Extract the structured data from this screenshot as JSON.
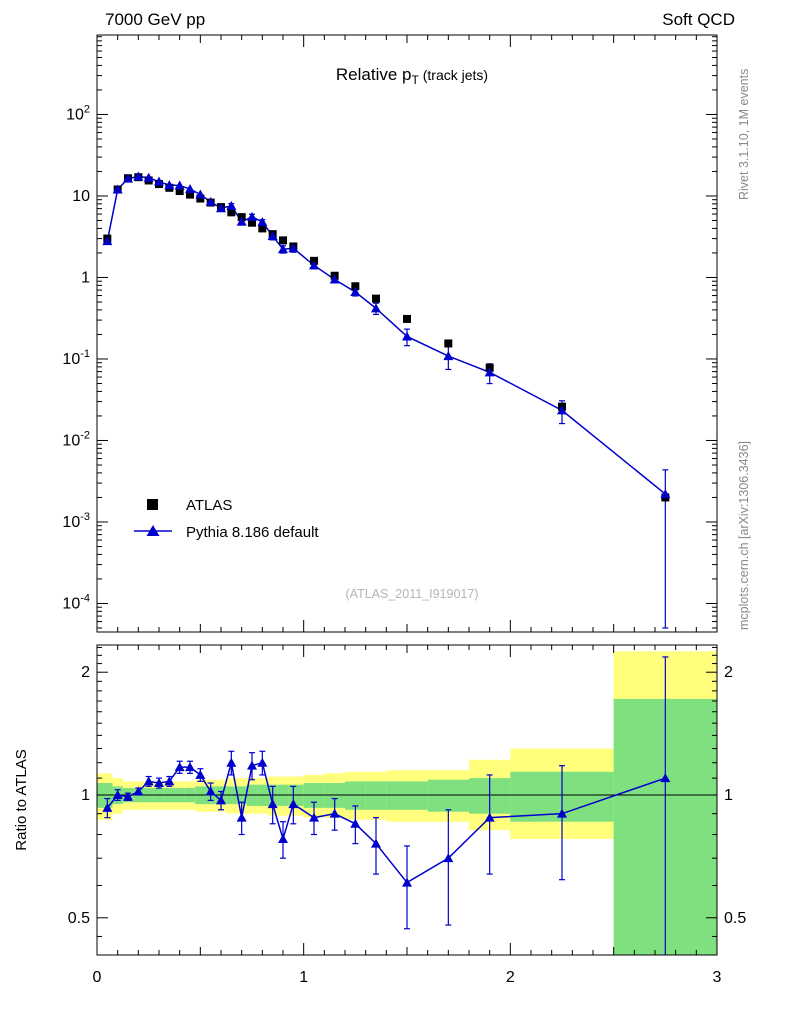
{
  "header": {
    "left": "7000 GeV pp",
    "right": "Soft QCD"
  },
  "side_labels": {
    "top_right": "Rivet 3.1.10, 1M events",
    "bottom_right": "mcplots.cern.ch [arXiv:1306.3436]"
  },
  "watermark": "(ATLAS_2011_I919017)",
  "colors": {
    "pythia_blue": "#0000cd",
    "atlas_black": "#000000",
    "band_yellow": "#ffff7d",
    "band_green": "#7fe07f",
    "gray_text": "#8a8a8a",
    "watermark_gray": "#b5b5b5"
  },
  "chart_data": [
    {
      "type": "line",
      "panel": "main",
      "title_main": "Relative p",
      "title_sub": "T",
      "title_suffix": " (track jets)",
      "xlabel": "",
      "ylabel": "",
      "xlim": [
        0,
        3
      ],
      "yscale": "log",
      "ylim": [
        4.5e-05,
        950
      ],
      "y_tick_labels": [
        "10^2",
        "10",
        "1",
        "10^-1",
        "10^-2",
        "10^-3",
        "10^-4"
      ],
      "y_tick_exponents": [
        2,
        1,
        0,
        -1,
        -2,
        -3,
        -4
      ],
      "x": [
        0.05,
        0.1,
        0.15,
        0.2,
        0.25,
        0.3,
        0.35,
        0.4,
        0.45,
        0.5,
        0.55,
        0.6,
        0.65,
        0.7,
        0.75,
        0.8,
        0.85,
        0.9,
        0.95,
        1.05,
        1.15,
        1.25,
        1.35,
        1.5,
        1.7,
        1.9,
        2.25,
        2.75
      ],
      "series": [
        {
          "name": "ATLAS",
          "marker": "square",
          "color": "#000000",
          "values": [
            3.0,
            12.0,
            16.5,
            17.0,
            15.5,
            14.0,
            12.6,
            11.5,
            10.4,
            9.3,
            8.3,
            7.3,
            6.3,
            5.5,
            4.7,
            4.0,
            3.4,
            2.85,
            2.4,
            1.6,
            1.05,
            0.78,
            0.55,
            0.31,
            0.155,
            0.078,
            0.026,
            0.002
          ]
        },
        {
          "name": "Pythia 8.186 default",
          "marker": "triangle",
          "color": "#0000cd",
          "values": [
            2.79,
            12.0,
            16.34,
            17.34,
            16.74,
            14.98,
            13.61,
            13.46,
            12.17,
            10.42,
            8.47,
            7.08,
            7.56,
            4.84,
            5.55,
            4.8,
            3.23,
            2.22,
            2.28,
            1.41,
            0.945,
            0.663,
            0.418,
            0.189,
            0.1085,
            0.0686,
            0.0234,
            0.0022
          ]
        }
      ],
      "legend": [
        "ATLAS",
        "Pythia 8.186 default"
      ],
      "legend_position": "lower-left"
    },
    {
      "type": "line",
      "panel": "ratio",
      "ylabel": "Ratio to ATLAS",
      "yscale": "log",
      "ylim": [
        0.41,
        2.33
      ],
      "reference_line": 1,
      "y_tick_labels": [
        "2",
        "1",
        "0.5"
      ],
      "y_tick_values": [
        2,
        1,
        0.5
      ],
      "x_tick_labels": [
        "0",
        "1",
        "2",
        "3"
      ],
      "x_tick_values": [
        0,
        1,
        2,
        3
      ],
      "x": [
        0.05,
        0.1,
        0.15,
        0.2,
        0.25,
        0.3,
        0.35,
        0.4,
        0.45,
        0.5,
        0.55,
        0.6,
        0.65,
        0.7,
        0.75,
        0.8,
        0.85,
        0.9,
        0.95,
        1.05,
        1.15,
        1.25,
        1.35,
        1.5,
        1.7,
        1.9,
        2.25,
        2.75
      ],
      "values": [
        0.93,
        1.0,
        0.99,
        1.02,
        1.08,
        1.07,
        1.08,
        1.17,
        1.17,
        1.12,
        1.02,
        0.97,
        1.2,
        0.88,
        1.18,
        1.2,
        0.95,
        0.78,
        0.95,
        0.88,
        0.9,
        0.85,
        0.76,
        0.61,
        0.7,
        0.88,
        0.9,
        1.1
      ],
      "err": [
        0.05,
        0.03,
        0.02,
        0.02,
        0.03,
        0.03,
        0.03,
        0.04,
        0.04,
        0.04,
        0.05,
        0.05,
        0.08,
        0.08,
        0.09,
        0.08,
        0.1,
        0.08,
        0.1,
        0.08,
        0.08,
        0.09,
        0.12,
        0.14,
        0.22,
        0.24,
        0.28,
        1.08
      ],
      "bands": {
        "edges": [
          0,
          0.075,
          0.125,
          0.175,
          0.225,
          0.275,
          0.325,
          0.375,
          0.425,
          0.475,
          0.525,
          0.575,
          0.625,
          0.675,
          0.725,
          0.775,
          0.825,
          0.875,
          0.925,
          1.0,
          1.1,
          1.2,
          1.3,
          1.4,
          1.6,
          1.8,
          2.0,
          2.5,
          3.0
        ],
        "yellow": [
          [
            0.87,
            1.13
          ],
          [
            0.9,
            1.1
          ],
          [
            0.92,
            1.08
          ],
          [
            0.92,
            1.08
          ],
          [
            0.92,
            1.08
          ],
          [
            0.92,
            1.08
          ],
          [
            0.92,
            1.08
          ],
          [
            0.92,
            1.08
          ],
          [
            0.92,
            1.08
          ],
          [
            0.91,
            1.09
          ],
          [
            0.91,
            1.09
          ],
          [
            0.91,
            1.09
          ],
          [
            0.9,
            1.1
          ],
          [
            0.9,
            1.1
          ],
          [
            0.9,
            1.1
          ],
          [
            0.9,
            1.1
          ],
          [
            0.89,
            1.11
          ],
          [
            0.89,
            1.11
          ],
          [
            0.89,
            1.11
          ],
          [
            0.88,
            1.12
          ],
          [
            0.88,
            1.13
          ],
          [
            0.87,
            1.14
          ],
          [
            0.87,
            1.14
          ],
          [
            0.86,
            1.15
          ],
          [
            0.86,
            1.15
          ],
          [
            0.82,
            1.22
          ],
          [
            0.78,
            1.3
          ],
          [
            0.4,
            2.25
          ]
        ],
        "green": [
          [
            0.93,
            1.07
          ],
          [
            0.95,
            1.05
          ],
          [
            0.96,
            1.04
          ],
          [
            0.96,
            1.04
          ],
          [
            0.96,
            1.04
          ],
          [
            0.96,
            1.04
          ],
          [
            0.96,
            1.04
          ],
          [
            0.96,
            1.04
          ],
          [
            0.96,
            1.04
          ],
          [
            0.95,
            1.05
          ],
          [
            0.95,
            1.05
          ],
          [
            0.95,
            1.05
          ],
          [
            0.95,
            1.05
          ],
          [
            0.95,
            1.05
          ],
          [
            0.94,
            1.06
          ],
          [
            0.94,
            1.06
          ],
          [
            0.94,
            1.06
          ],
          [
            0.94,
            1.06
          ],
          [
            0.94,
            1.06
          ],
          [
            0.93,
            1.07
          ],
          [
            0.93,
            1.07
          ],
          [
            0.92,
            1.08
          ],
          [
            0.92,
            1.08
          ],
          [
            0.92,
            1.08
          ],
          [
            0.91,
            1.09
          ],
          [
            0.9,
            1.1
          ],
          [
            0.86,
            1.14
          ],
          [
            0.4,
            1.72
          ]
        ]
      }
    }
  ]
}
